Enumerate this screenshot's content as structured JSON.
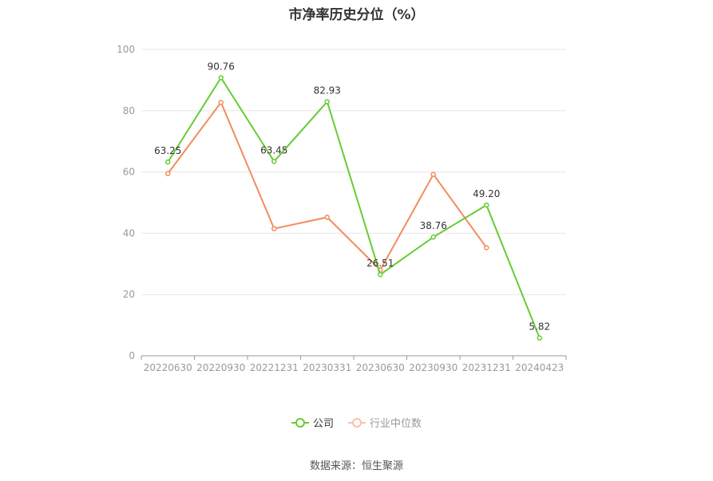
{
  "chart_data": {
    "type": "line",
    "title": "市净率历史分位（%）",
    "categories": [
      "20220630",
      "20220930",
      "20221231",
      "20230331",
      "20230630",
      "20230930",
      "20231231",
      "20240423"
    ],
    "ylim": [
      0,
      100
    ],
    "yticks": [
      0,
      20,
      40,
      60,
      80,
      100
    ],
    "grid": true,
    "legend_position": "bottom-center",
    "series": [
      {
        "name": "公司",
        "color": "#66cc33",
        "values": [
          63.25,
          90.76,
          63.45,
          82.93,
          26.51,
          38.76,
          49.2,
          5.82
        ],
        "labels": [
          "63.25",
          "90.76",
          "63.45",
          "82.93",
          "26.51",
          "38.76",
          "49.20",
          "5.82"
        ]
      },
      {
        "name": "行业中位数",
        "color": "#f28c5e",
        "values": [
          59.5,
          82.7,
          41.5,
          45.2,
          28.0,
          59.2,
          35.3,
          null
        ]
      }
    ]
  },
  "footer": {
    "source": "数据来源：恒生聚源"
  }
}
